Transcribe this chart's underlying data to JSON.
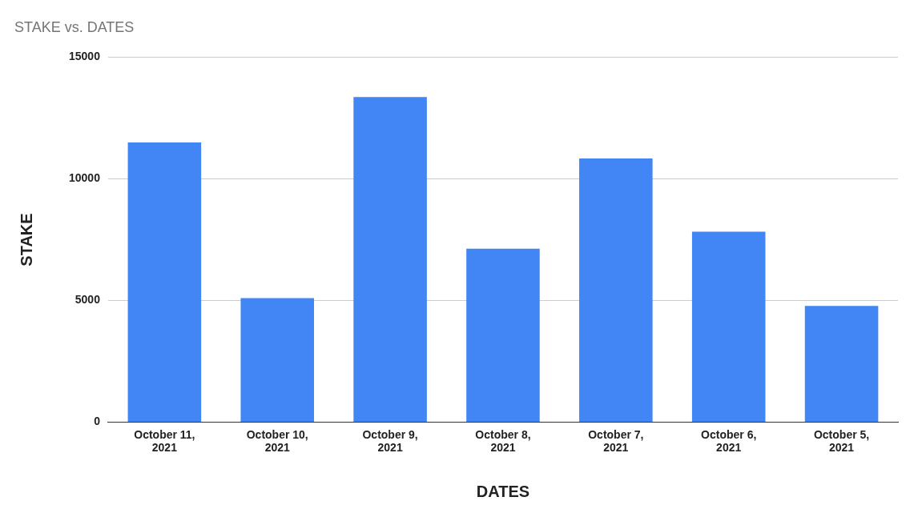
{
  "chart_data": {
    "type": "bar",
    "title": "STAKE vs. DATES",
    "xlabel": "DATES",
    "ylabel": "STAKE",
    "categories": [
      "October 11, 2021",
      "October 10, 2021",
      "October 9, 2021",
      "October 8, 2021",
      "October 7, 2021",
      "October 6, 2021",
      "October 5, 2021"
    ],
    "values": [
      11500,
      5100,
      13370,
      7130,
      10840,
      7830,
      4780
    ],
    "color": "#4285f4",
    "ylim": [
      0,
      15000
    ],
    "yticks": [
      0,
      5000,
      10000,
      15000
    ],
    "grid": "y",
    "legend": false
  }
}
